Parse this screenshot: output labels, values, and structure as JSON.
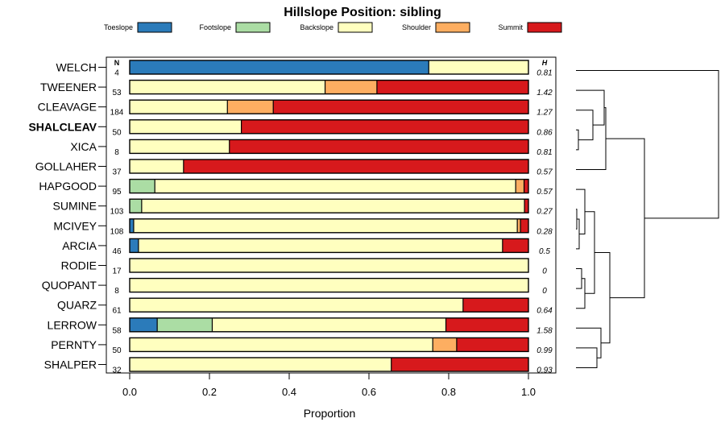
{
  "chart_data": {
    "type": "bar",
    "orientation": "horizontal",
    "stacked": true,
    "title": "Hillslope Position: sibling",
    "xlabel": "Proportion",
    "xlim": [
      0,
      1
    ],
    "xticks": [
      "0.0",
      "0.2",
      "0.4",
      "0.6",
      "0.8",
      "1.0"
    ],
    "left_column_header": "N",
    "right_column_header": "H",
    "highlighted_category": "SHALCLEAV",
    "legend": [
      {
        "name": "Toeslope",
        "color": "#2b7bba"
      },
      {
        "name": "Footslope",
        "color": "#abdda4"
      },
      {
        "name": "Backslope",
        "color": "#ffffbf"
      },
      {
        "name": "Shoulder",
        "color": "#fdae61"
      },
      {
        "name": "Summit",
        "color": "#d7191c"
      }
    ],
    "rows": [
      {
        "name": "WELCH",
        "n": "4",
        "h": "0.81",
        "values": [
          0.75,
          0,
          0.25,
          0,
          0
        ]
      },
      {
        "name": "TWEENER",
        "n": "53",
        "h": "1.42",
        "values": [
          0,
          0,
          0.49,
          0.13,
          0.38
        ]
      },
      {
        "name": "CLEAVAGE",
        "n": "184",
        "h": "1.27",
        "values": [
          0,
          0,
          0.245,
          0.115,
          0.64
        ]
      },
      {
        "name": "SHALCLEAV",
        "n": "50",
        "h": "0.86",
        "values": [
          0,
          0,
          0.28,
          0,
          0.72
        ]
      },
      {
        "name": "XICA",
        "n": "8",
        "h": "0.81",
        "values": [
          0,
          0,
          0.25,
          0,
          0.75
        ]
      },
      {
        "name": "GOLLAHER",
        "n": "37",
        "h": "0.57",
        "values": [
          0,
          0,
          0.135,
          0,
          0.865
        ]
      },
      {
        "name": "HAPGOOD",
        "n": "95",
        "h": "0.57",
        "values": [
          0,
          0.063,
          0.905,
          0.021,
          0.011
        ]
      },
      {
        "name": "SUMINE",
        "n": "103",
        "h": "0.27",
        "values": [
          0,
          0.03,
          0.96,
          0,
          0.01
        ]
      },
      {
        "name": "MCIVEY",
        "n": "108",
        "h": "0.28",
        "values": [
          0.01,
          0,
          0.962,
          0.008,
          0.02
        ]
      },
      {
        "name": "ARCIA",
        "n": "46",
        "h": "0.5",
        "values": [
          0.022,
          0,
          0.913,
          0,
          0.065
        ]
      },
      {
        "name": "RODIE",
        "n": "17",
        "h": "0",
        "values": [
          0,
          0,
          1,
          0,
          0
        ]
      },
      {
        "name": "QUOPANT",
        "n": "8",
        "h": "0",
        "values": [
          0,
          0,
          1,
          0,
          0
        ]
      },
      {
        "name": "QUARZ",
        "n": "61",
        "h": "0.64",
        "values": [
          0,
          0,
          0.836,
          0,
          0.164
        ]
      },
      {
        "name": "LERROW",
        "n": "58",
        "h": "1.58",
        "values": [
          0.069,
          0.138,
          0.586,
          0,
          0.207
        ]
      },
      {
        "name": "PERNTY",
        "n": "50",
        "h": "0.99",
        "values": [
          0,
          0,
          0.76,
          0.06,
          0.18
        ]
      },
      {
        "name": "SHALPER",
        "n": "32",
        "h": "0.93",
        "values": [
          0,
          0,
          0.656,
          0,
          0.344
        ]
      }
    ]
  }
}
